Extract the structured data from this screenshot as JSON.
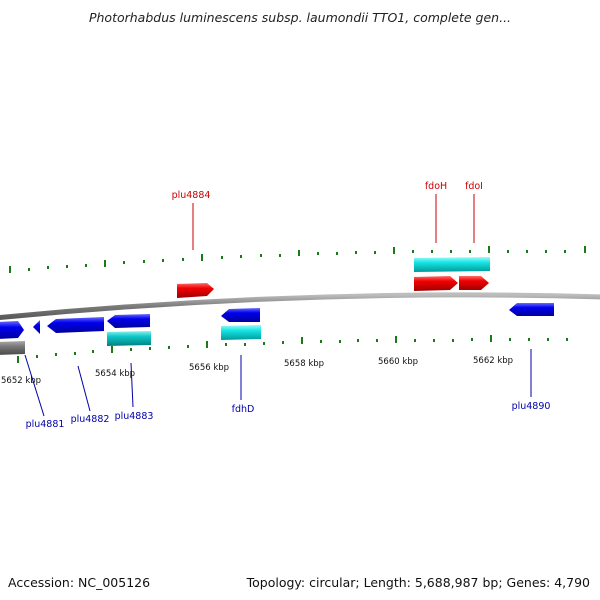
{
  "header": {
    "title": "Photorhabdus luminescens subsp. laumondii TTO1, complete gen..."
  },
  "footer": {
    "accession": "Accession: NC_005126",
    "summary": "Topology: circular; Length: 5,688,987 bp; Genes: 4,790"
  },
  "colors": {
    "forward_cds": "#e60000",
    "reverse_cds": "#0000dd",
    "forward_rna": "#00dddd",
    "reverse_rna": "#00bcbc",
    "backbone": "#888888",
    "ticks": "#1a7a1a",
    "forward_label": "#cc0000",
    "reverse_label": "#0000aa"
  },
  "scale_labels": [
    "5652 kbp",
    "5654 kbp",
    "5656 kbp",
    "5658 kbp",
    "5660 kbp",
    "5662 kbp"
  ],
  "features": {
    "forward": [
      {
        "name": "plu4884",
        "type": "CDS"
      },
      {
        "name": "fdoH",
        "type": "CDS"
      },
      {
        "name": "fdoI",
        "type": "CDS"
      }
    ],
    "reverse": [
      {
        "name": "plu4881",
        "type": "CDS"
      },
      {
        "name": "plu4882",
        "type": "CDS"
      },
      {
        "name": "plu4883",
        "type": "CDS"
      },
      {
        "name": "fdhD",
        "type": "CDS"
      },
      {
        "name": "plu4890",
        "type": "CDS"
      }
    ]
  }
}
